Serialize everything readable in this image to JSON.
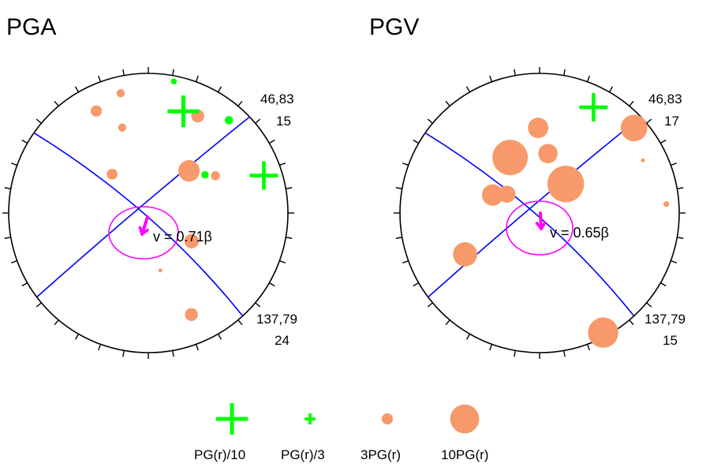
{
  "colors": {
    "circle": "#000000",
    "plane": "#0000ff",
    "minus": "#00ff00",
    "plus": "#f7996a",
    "arrow": "#ff00ff",
    "ellipse": "#ff00ff"
  },
  "panels": [
    {
      "key": "pga",
      "title": "PGA",
      "upper_strike_dip": "46,83",
      "upper_value": "15",
      "lower_strike_dip": "137,79",
      "lower_value": "24",
      "velocity_label": "v = 0.71β",
      "velocity_ratio": 0.71,
      "plus_symbols": [
        {
          "az": 27,
          "r": 0.78,
          "weight": 2.0
        },
        {
          "az": -27,
          "r": 0.82,
          "weight": 1.5
        },
        {
          "az": -13,
          "r": 0.88,
          "weight": 0.8
        },
        {
          "az": -17,
          "r": 0.64,
          "weight": 0.8
        },
        {
          "az": -43,
          "r": 0.38,
          "weight": 1.4
        },
        {
          "az": 44,
          "r": 0.42,
          "weight": 5.5
        },
        {
          "az": 123,
          "r": 0.37,
          "weight": 2.5
        },
        {
          "az": 61,
          "r": 0.55,
          "weight": 1.0
        },
        {
          "az": 168,
          "r": 0.42,
          "weight": 0.1
        },
        {
          "az": 157,
          "r": 0.79,
          "weight": 2.0
        }
      ],
      "minus_symbols": [
        {
          "az": 19,
          "r": 0.77,
          "weight": 5.0
        },
        {
          "az": 41,
          "r": 0.88,
          "weight": 0.9
        },
        {
          "az": 72,
          "r": 0.87,
          "weight": 4.0
        },
        {
          "az": 56,
          "r": 0.49,
          "weight": 0.6
        },
        {
          "az": 11,
          "r": 0.96,
          "weight": 0.1
        }
      ]
    },
    {
      "key": "pgv",
      "title": "PGV",
      "upper_strike_dip": "46,83",
      "upper_value": "17",
      "lower_strike_dip": "137,79",
      "lower_value": "15",
      "velocity_label": "v = 0.65β",
      "velocity_ratio": 0.65,
      "plus_symbols": [
        {
          "az": 48,
          "r": 0.91,
          "weight": 8.5
        },
        {
          "az": -28,
          "r": 0.45,
          "weight": 15.0
        },
        {
          "az": -1,
          "r": 0.61,
          "weight": 5.0
        },
        {
          "az": 8,
          "r": 0.43,
          "weight": 4.5
        },
        {
          "az": 42,
          "r": 0.28,
          "weight": 16.0
        },
        {
          "az": -69,
          "r": 0.36,
          "weight": 5.5
        },
        {
          "az": -60,
          "r": 0.27,
          "weight": 3.5
        },
        {
          "az": -119,
          "r": 0.61,
          "weight": 7.0
        },
        {
          "az": 86,
          "r": 0.91,
          "weight": 0.4
        },
        {
          "az": 152,
          "r": 0.97,
          "weight": 11.0
        },
        {
          "az": 63,
          "r": 0.83,
          "weight": 0.1
        }
      ],
      "minus_symbols": [
        {
          "az": 27,
          "r": 0.85,
          "weight": 4.0
        }
      ]
    }
  ],
  "legend": [
    {
      "label": "PG(r)/10",
      "kind": "minus",
      "weight": 5.0
    },
    {
      "label": "PG(r)/3",
      "kind": "minus",
      "weight": 0.6
    },
    {
      "label": "3PG(r)",
      "kind": "plus",
      "weight": 1.5
    },
    {
      "label": "10PG(r)",
      "kind": "plus",
      "weight": 10.0
    }
  ]
}
